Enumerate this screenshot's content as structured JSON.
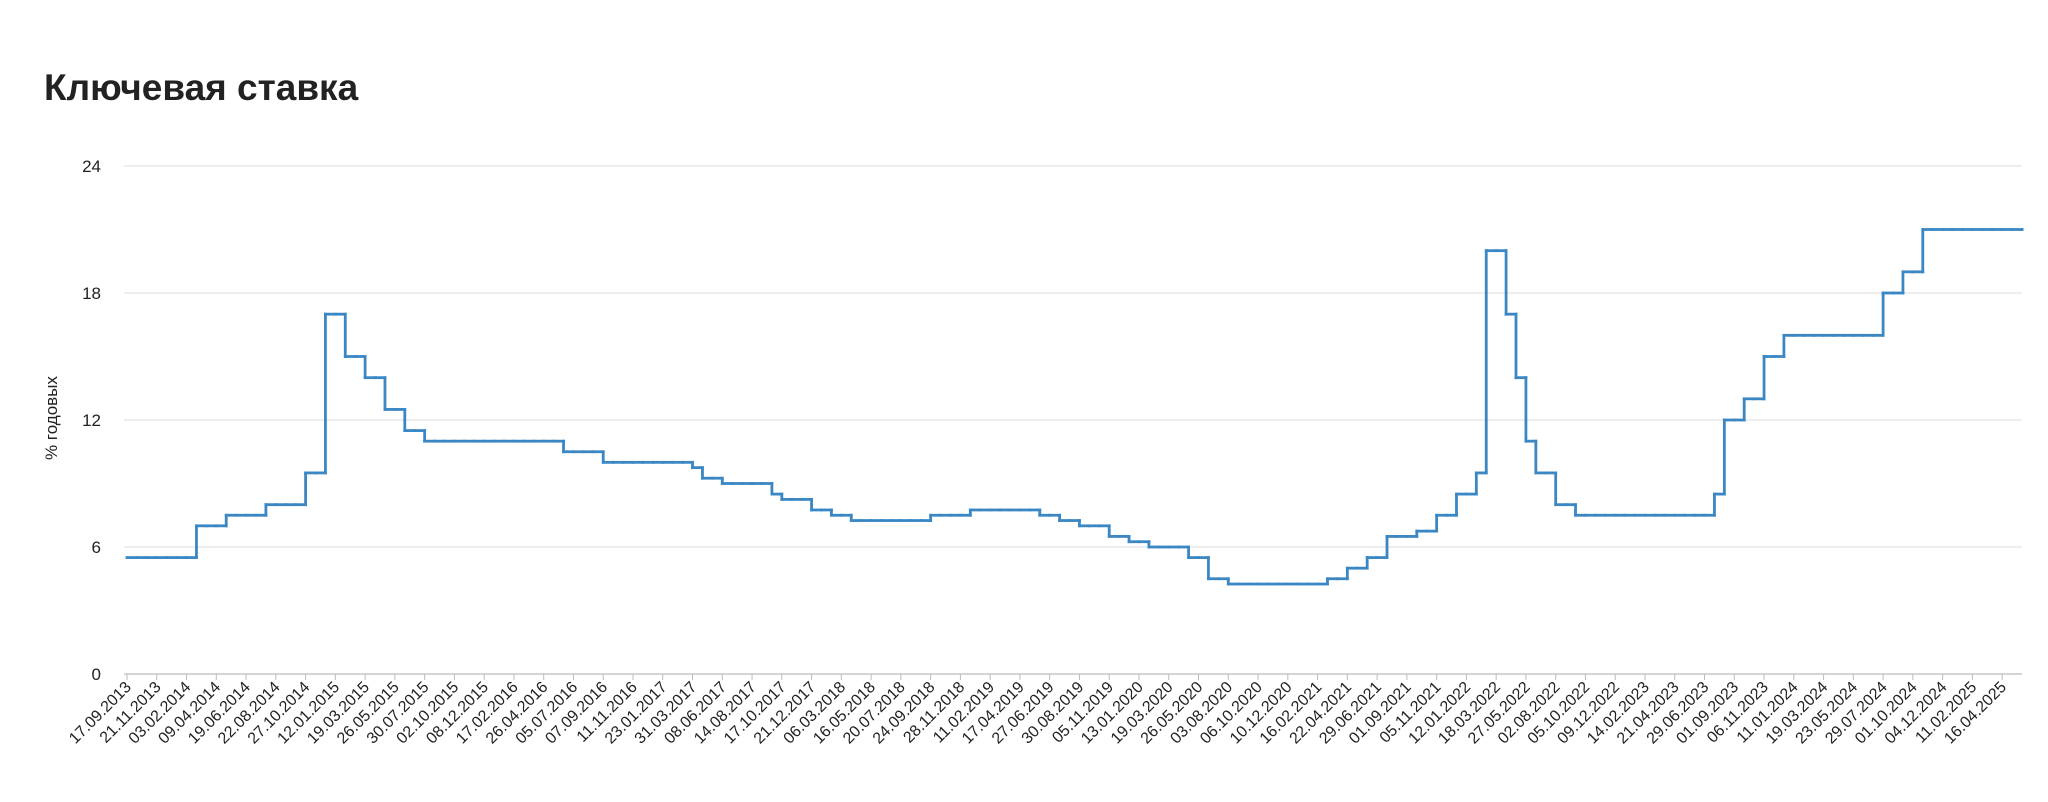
{
  "chart_data": {
    "type": "line",
    "line_style": "step",
    "title": "Ключевая ставка",
    "y_label": "% годовых",
    "ylim": [
      0,
      24
    ],
    "yticks": [
      0,
      6,
      12,
      18,
      24
    ],
    "grid": true,
    "categories": [
      "17.09.2013",
      null,
      null,
      "21.11.2013",
      null,
      null,
      "03.02.2014",
      null,
      null,
      "09.04.2014",
      null,
      null,
      "19.06.2014",
      null,
      null,
      "22.08.2014",
      null,
      null,
      "27.10.2014",
      null,
      null,
      "12.01.2015",
      null,
      null,
      "19.03.2015",
      null,
      null,
      "26.05.2015",
      null,
      null,
      "30.07.2015",
      null,
      null,
      "02.10.2015",
      null,
      null,
      "08.12.2015",
      null,
      null,
      "17.02.2016",
      null,
      null,
      "26.04.2016",
      null,
      null,
      "05.07.2016",
      null,
      null,
      "07.09.2016",
      null,
      null,
      "11.11.2016",
      null,
      null,
      "23.01.2017",
      null,
      null,
      "31.03.2017",
      null,
      null,
      "08.06.2017",
      null,
      null,
      "14.08.2017",
      null,
      null,
      "17.10.2017",
      null,
      null,
      "21.12.2017",
      null,
      null,
      "06.03.2018",
      null,
      null,
      "16.05.2018",
      null,
      null,
      "20.07.2018",
      null,
      null,
      "24.09.2018",
      null,
      null,
      "28.11.2018",
      null,
      null,
      "11.02.2019",
      null,
      null,
      "17.04.2019",
      null,
      null,
      "27.06.2019",
      null,
      null,
      "30.08.2019",
      null,
      null,
      "05.11.2019",
      null,
      null,
      "13.01.2020",
      null,
      null,
      "19.03.2020",
      null,
      null,
      "26.05.2020",
      null,
      null,
      "03.08.2020",
      null,
      null,
      "06.10.2020",
      null,
      null,
      "10.12.2020",
      null,
      null,
      "16.02.2021",
      null,
      null,
      "22.04.2021",
      null,
      null,
      "29.06.2021",
      null,
      null,
      "01.09.2021",
      null,
      null,
      "05.11.2021",
      null,
      null,
      "12.01.2022",
      null,
      null,
      "18.03.2022",
      null,
      null,
      "27.05.2022",
      null,
      null,
      "02.08.2022",
      null,
      null,
      "05.10.2022",
      null,
      null,
      "09.12.2022",
      null,
      null,
      "14.02.2023",
      null,
      null,
      "21.04.2023",
      null,
      null,
      "29.06.2023",
      null,
      null,
      "01.09.2023",
      null,
      null,
      "06.11.2023",
      null,
      null,
      "11.01.2024",
      null,
      null,
      "19.03.2024",
      null,
      null,
      "23.05.2024",
      null,
      null,
      "29.07.2024",
      null,
      null,
      "01.10.2024",
      null,
      null,
      "04.12.2024",
      null,
      null,
      "11.02.2025",
      null,
      null,
      "16.04.2025",
      null,
      null
    ],
    "series": [
      {
        "color": "#3a87c4",
        "values": [
          5.5,
          5.5,
          5.5,
          5.5,
          5.5,
          5.5,
          5.5,
          7,
          7,
          7,
          7.5,
          7.5,
          7.5,
          7.5,
          8,
          8,
          8,
          8,
          9.5,
          9.5,
          17,
          17,
          15,
          15,
          14,
          14,
          12.5,
          12.5,
          11.5,
          11.5,
          11,
          11,
          11,
          11,
          11,
          11,
          11,
          11,
          11,
          11,
          11,
          11,
          11,
          11,
          10.5,
          10.5,
          10.5,
          10.5,
          10,
          10,
          10,
          10,
          10,
          10,
          10,
          10,
          10,
          9.75,
          9.25,
          9.25,
          9,
          9,
          9,
          9,
          9,
          8.5,
          8.25,
          8.25,
          8.25,
          7.75,
          7.75,
          7.5,
          7.5,
          7.25,
          7.25,
          7.25,
          7.25,
          7.25,
          7.25,
          7.25,
          7.25,
          7.5,
          7.5,
          7.5,
          7.5,
          7.75,
          7.75,
          7.75,
          7.75,
          7.75,
          7.75,
          7.75,
          7.5,
          7.5,
          7.25,
          7.25,
          7,
          7,
          7,
          6.5,
          6.5,
          6.25,
          6.25,
          6,
          6,
          6,
          6,
          5.5,
          5.5,
          4.5,
          4.5,
          4.25,
          4.25,
          4.25,
          4.25,
          4.25,
          4.25,
          4.25,
          4.25,
          4.25,
          4.25,
          4.5,
          4.5,
          5,
          5,
          5.5,
          5.5,
          6.5,
          6.5,
          6.5,
          6.75,
          6.75,
          7.5,
          7.5,
          8.5,
          8.5,
          9.5,
          20,
          20,
          17,
          14,
          11,
          9.5,
          9.5,
          8,
          8,
          7.5,
          7.5,
          7.5,
          7.5,
          7.5,
          7.5,
          7.5,
          7.5,
          7.5,
          7.5,
          7.5,
          7.5,
          7.5,
          7.5,
          8.5,
          12,
          12,
          13,
          13,
          15,
          15,
          16,
          16,
          16,
          16,
          16,
          16,
          16,
          16,
          16,
          16,
          18,
          18,
          19,
          19,
          21,
          21,
          21,
          21,
          21,
          21,
          21,
          21,
          21,
          21,
          21
        ]
      }
    ]
  }
}
